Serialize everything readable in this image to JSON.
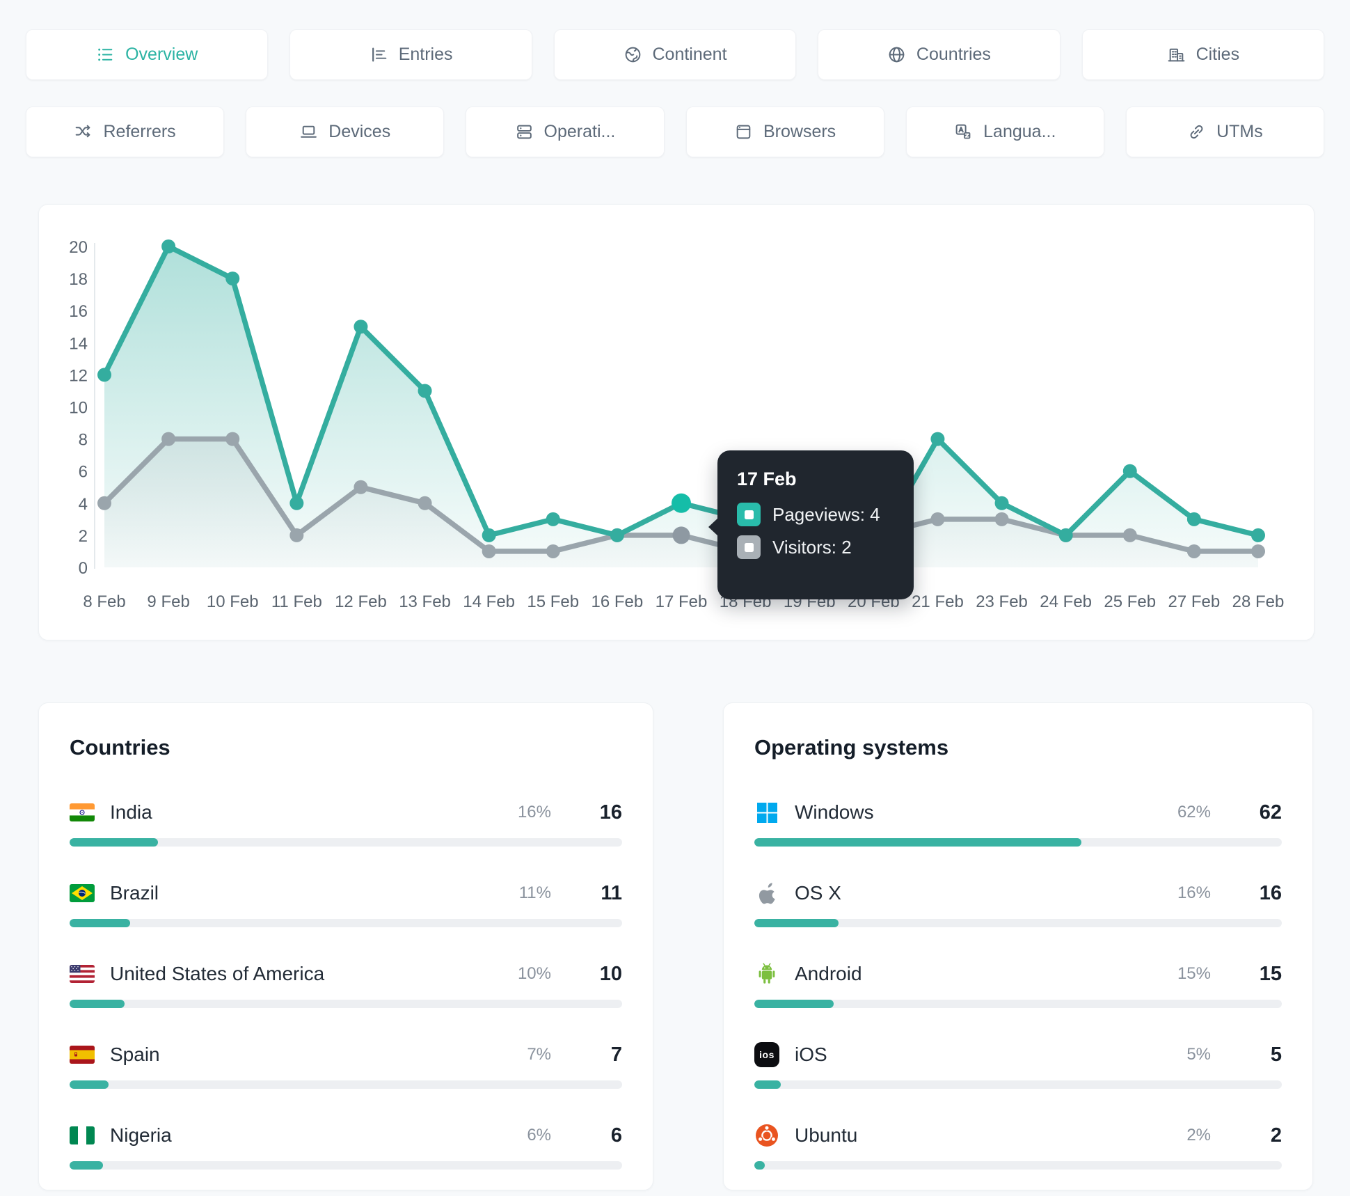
{
  "tabs": {
    "row1": [
      {
        "label": "Overview",
        "icon": "list-icon",
        "active": true
      },
      {
        "label": "Entries",
        "icon": "bar-chart-icon",
        "active": false
      },
      {
        "label": "Continent",
        "icon": "earth-icon",
        "active": false
      },
      {
        "label": "Countries",
        "icon": "globe-icon",
        "active": false
      },
      {
        "label": "Cities",
        "icon": "buildings-icon",
        "active": false
      }
    ],
    "row2": [
      {
        "label": "Referrers",
        "icon": "shuffle-icon",
        "active": false
      },
      {
        "label": "Devices",
        "icon": "laptop-icon",
        "active": false
      },
      {
        "label": "Operati...",
        "icon": "server-icon",
        "active": false
      },
      {
        "label": "Browsers",
        "icon": "browser-window-icon",
        "active": false
      },
      {
        "label": "Langua...",
        "icon": "translate-icon",
        "active": false
      },
      {
        "label": "UTMs",
        "icon": "link-icon",
        "active": false
      }
    ]
  },
  "chart_data": {
    "type": "line",
    "x": [
      "8 Feb",
      "9 Feb",
      "10 Feb",
      "11 Feb",
      "12 Feb",
      "13 Feb",
      "14 Feb",
      "15 Feb",
      "16 Feb",
      "17 Feb",
      "18 Feb",
      "19 Feb",
      "20 Feb",
      "21 Feb",
      "23 Feb",
      "24 Feb",
      "25 Feb",
      "27 Feb",
      "28 Feb"
    ],
    "series": [
      {
        "name": "Pageviews",
        "color": "#34ad9f",
        "active_color": "#15bda8",
        "values": [
          12,
          20,
          18,
          4,
          15,
          11,
          2,
          3,
          2,
          4,
          3,
          2,
          1,
          8,
          4,
          2,
          6,
          3,
          2
        ]
      },
      {
        "name": "Visitors",
        "color": "#9aa5ac",
        "active_color": "#8e99a2",
        "values": [
          4,
          8,
          8,
          2,
          5,
          4,
          1,
          1,
          2,
          2,
          1,
          1,
          2,
          3,
          3,
          2,
          2,
          1,
          1
        ]
      }
    ],
    "active_index": 9,
    "ylim": [
      0,
      20
    ],
    "yticks": [
      0,
      2,
      4,
      6,
      8,
      10,
      12,
      14,
      16,
      18,
      20
    ],
    "grid": false,
    "legend_position": "none",
    "tooltip": {
      "title": "17 Feb",
      "rows": [
        {
          "text": "Pageviews: 4",
          "color": "#29bcab"
        },
        {
          "text": "Visitors: 2",
          "color": "#a9b0b6"
        }
      ]
    }
  },
  "countries": {
    "title": "Countries",
    "rows": [
      {
        "label": "India",
        "percent": "16%",
        "count": "16",
        "bar_pct": 16,
        "flag": "india-flag-icon"
      },
      {
        "label": "Brazil",
        "percent": "11%",
        "count": "11",
        "bar_pct": 11,
        "flag": "brazil-flag-icon"
      },
      {
        "label": "United States of America",
        "percent": "10%",
        "count": "10",
        "bar_pct": 10,
        "flag": "usa-flag-icon"
      },
      {
        "label": "Spain",
        "percent": "7%",
        "count": "7",
        "bar_pct": 7,
        "flag": "spain-flag-icon"
      },
      {
        "label": "Nigeria",
        "percent": "6%",
        "count": "6",
        "bar_pct": 6,
        "flag": "nigeria-flag-icon"
      }
    ]
  },
  "operating_systems": {
    "title": "Operating systems",
    "rows": [
      {
        "label": "Windows",
        "percent": "62%",
        "count": "62",
        "bar_pct": 62,
        "icon": "windows-icon"
      },
      {
        "label": "OS X",
        "percent": "16%",
        "count": "16",
        "bar_pct": 16,
        "icon": "apple-icon"
      },
      {
        "label": "Android",
        "percent": "15%",
        "count": "15",
        "bar_pct": 15,
        "icon": "android-icon"
      },
      {
        "label": "iOS",
        "percent": "5%",
        "count": "5",
        "bar_pct": 5,
        "icon": "ios-icon",
        "icon_text": "ios"
      },
      {
        "label": "Ubuntu",
        "percent": "2%",
        "count": "2",
        "bar_pct": 2,
        "icon": "ubuntu-icon"
      }
    ]
  },
  "colors": {
    "accent": "#2bb3a3",
    "pageviews": "#34ad9f",
    "visitors": "#9aa5ac",
    "tooltip_bg": "#20262e",
    "bar_fill": "#39b2a2",
    "bar_track": "#edeff2"
  }
}
